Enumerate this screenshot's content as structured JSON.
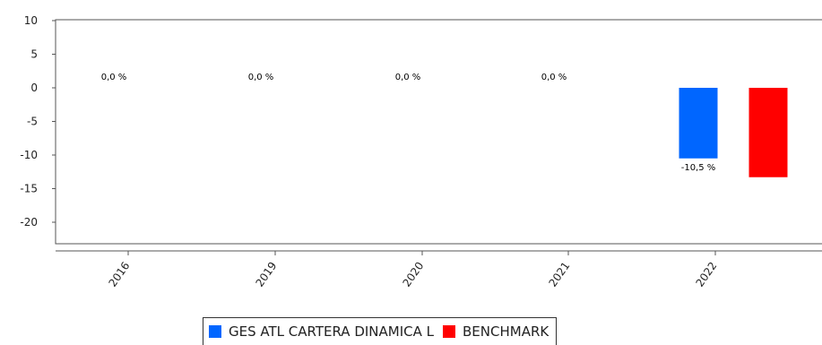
{
  "chart_data": {
    "type": "bar",
    "categories": [
      "2016",
      "2019",
      "2020",
      "2021",
      "2022"
    ],
    "series": [
      {
        "name": "GES ATL CARTERA DINAMICA L",
        "color": "#0066ff",
        "values": [
          0,
          0,
          0,
          0,
          -10.5
        ],
        "labels": [
          "0,0 %",
          "0,0 %",
          "0,0 %",
          "0,0 %",
          "-10,5 %"
        ]
      },
      {
        "name": "BENCHMARK",
        "color": "#ff0000",
        "values": [
          null,
          null,
          null,
          null,
          -13.3
        ],
        "labels": [
          null,
          null,
          null,
          null,
          null
        ]
      }
    ],
    "yticks": [
      10,
      5,
      0,
      -5,
      -10,
      -15,
      -20
    ],
    "ylim": [
      -23,
      10
    ],
    "title": "",
    "xlabel": "",
    "ylabel": "",
    "grid": false,
    "legend_position": "bottom"
  }
}
